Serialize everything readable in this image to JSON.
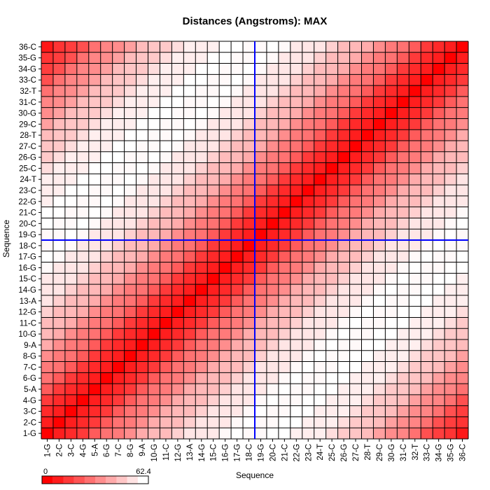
{
  "chart_data": {
    "type": "heatmap",
    "title": "Distances (Angstroms):  MAX",
    "xlabel": "Sequence",
    "ylabel": "Sequence",
    "labels": [
      "1-G",
      "2-C",
      "3-C",
      "4-G",
      "5-A",
      "6-G",
      "7-C",
      "8-G",
      "9-A",
      "10-G",
      "11-C",
      "12-G",
      "13-A",
      "14-G",
      "15-C",
      "16-G",
      "17-G",
      "18-C",
      "19-G",
      "20-C",
      "21-C",
      "22-G",
      "23-C",
      "24-T",
      "25-C",
      "26-G",
      "27-C",
      "28-T",
      "29-C",
      "30-G",
      "31-C",
      "32-T",
      "33-C",
      "34-G",
      "35-G",
      "36-C"
    ],
    "value_model": "symmetric distance matrix; value(i,j) ≈ f(|i-j|), zero on the diagonal, rising toward 62.4 for sequence separations near 18 and falling again for larger separations",
    "colorbar": {
      "min_label": "0",
      "max_label": "62.4",
      "vmin": 0,
      "vmax": 62.4,
      "low_color": "#ff0000",
      "high_color": "#ffffff"
    },
    "crosshair": {
      "x_between": [
        "18-C",
        "19-G"
      ],
      "y_between": [
        "18-C",
        "19-G"
      ],
      "color": "#0000ff"
    }
  }
}
